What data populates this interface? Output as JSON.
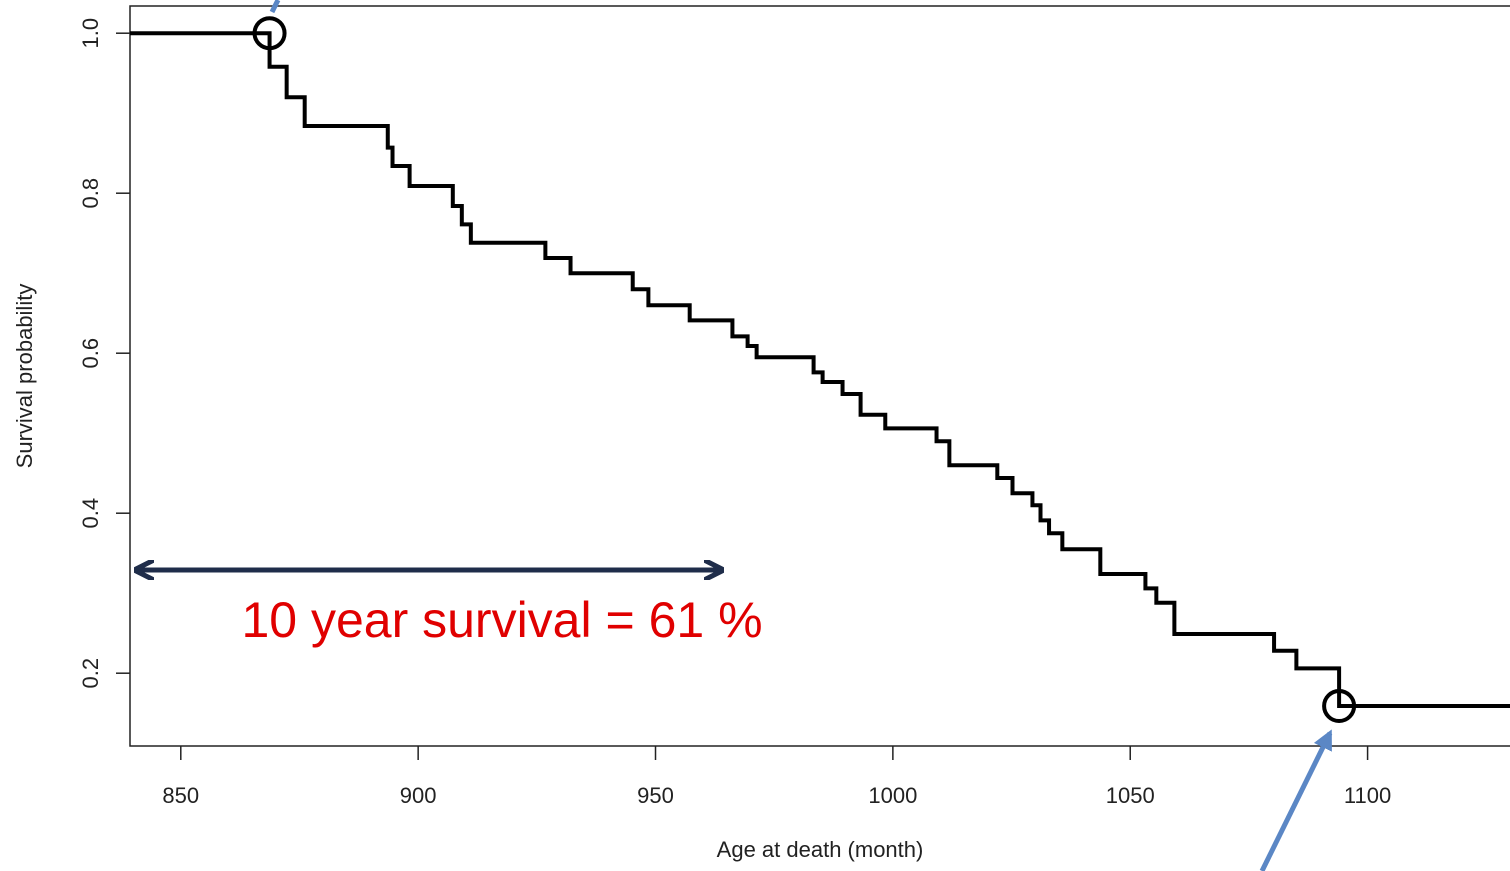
{
  "chart_data": {
    "type": "step",
    "x_label": "Age at death (month)",
    "y_label": "Survival probability",
    "annotation": "10 year survival  = 61 %",
    "color": "#000000",
    "annotation_color": "#e00000",
    "x": [
      839.3,
      868.7,
      872.3,
      876.1,
      893.6,
      894.6,
      898.2,
      907.3,
      909.2,
      911.1,
      926.8,
      932.1,
      945.2,
      948.5,
      957.2,
      966.2,
      969.4,
      971.3,
      983.3,
      985.2,
      989.4,
      993.2,
      998.4,
      1009.2,
      1011.9,
      1022.0,
      1025.2,
      1029.4,
      1031.1,
      1032.9,
      1035.7,
      1043.7,
      1053.2,
      1055.5,
      1059.3,
      1080.3,
      1085.0,
      1094.0,
      1130.0
    ],
    "y": [
      1.0,
      0.958,
      0.92,
      0.884,
      0.857,
      0.834,
      0.809,
      0.784,
      0.761,
      0.738,
      0.719,
      0.7,
      0.68,
      0.66,
      0.641,
      0.621,
      0.609,
      0.595,
      0.576,
      0.564,
      0.549,
      0.523,
      0.506,
      0.49,
      0.46,
      0.444,
      0.425,
      0.41,
      0.391,
      0.375,
      0.355,
      0.324,
      0.306,
      0.288,
      0.249,
      0.228,
      0.206,
      0.159,
      0.159
    ],
    "circles": [
      {
        "x": 868.7,
        "y": 1.0
      },
      {
        "x": 1094.0,
        "y": 0.159
      }
    ],
    "xlim": [
      839.3,
      1130.0
    ],
    "ylim": [
      0.109,
      1.034
    ],
    "xticks": [
      850,
      900,
      950,
      1000,
      1050,
      1100
    ],
    "yticks": [
      0.2,
      0.4,
      0.6,
      0.8,
      {
        "value": 1,
        "label": "1.0"
      }
    ]
  }
}
